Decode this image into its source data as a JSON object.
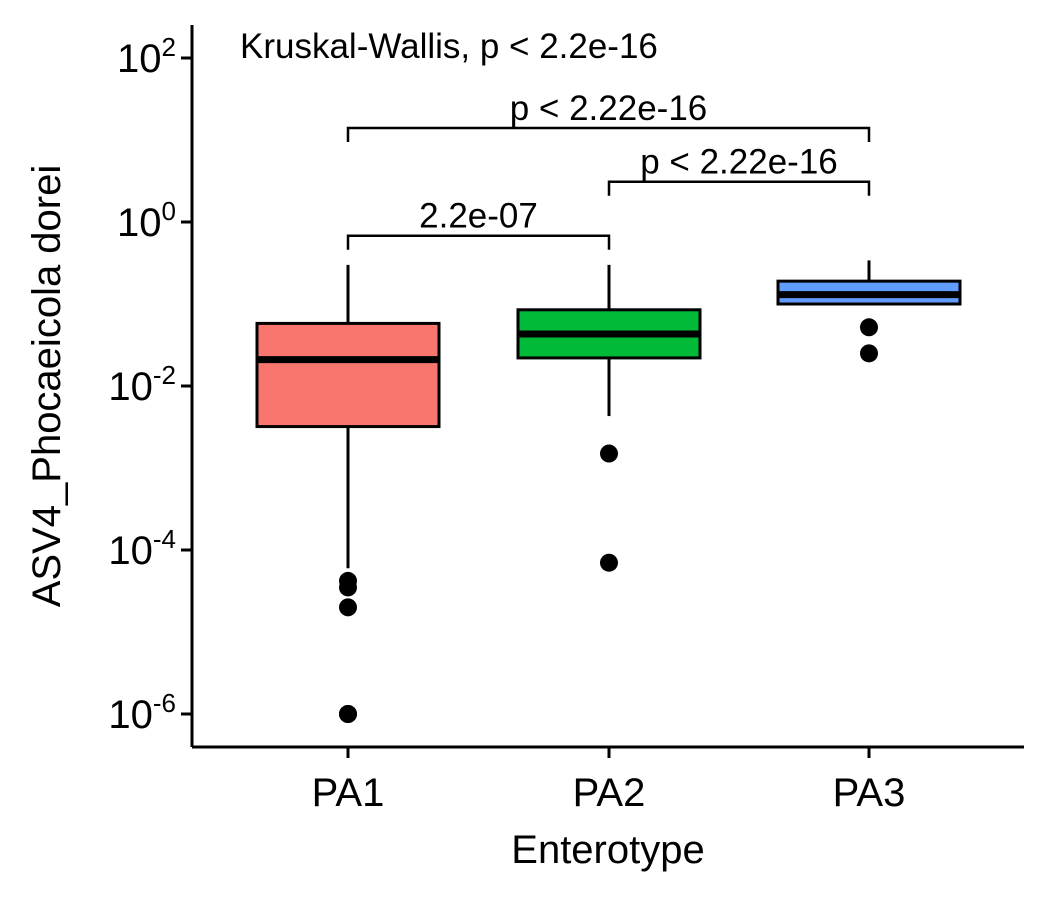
{
  "chart_data": {
    "type": "box",
    "title": "",
    "xlabel": "Enterotype",
    "ylabel": "ASV4_Phocaeicola dorei",
    "y_scale": "log10",
    "ylim": [
      3.5e-07,
      250
    ],
    "y_ticks": [
      {
        "value": 1e-06,
        "base": "10",
        "exp": "-6"
      },
      {
        "value": 0.0001,
        "base": "10",
        "exp": "-4"
      },
      {
        "value": 0.01,
        "base": "10",
        "exp": "-2"
      },
      {
        "value": 1,
        "base": "10",
        "exp": "0"
      },
      {
        "value": 100,
        "base": "10",
        "exp": "2"
      }
    ],
    "categories": [
      "PA1",
      "PA2",
      "PA3"
    ],
    "boxes": [
      {
        "category": "PA1",
        "color": "#F8766D",
        "whisker_low": 6e-05,
        "q1": 0.0032,
        "median": 0.021,
        "q3": 0.058,
        "whisker_high": 0.3,
        "outliers": [
          4.2e-05,
          3.5e-05,
          2e-05,
          1e-06,
          1e-06
        ]
      },
      {
        "category": "PA2",
        "color": "#00BA38",
        "whisker_low": 0.0043,
        "q1": 0.022,
        "median": 0.043,
        "q3": 0.085,
        "whisker_high": 0.3,
        "outliers": [
          0.0015,
          7e-05
        ]
      },
      {
        "category": "PA3",
        "color": "#619CFF",
        "whisker_low": 0.1,
        "q1": 0.1,
        "median": 0.13,
        "q3": 0.19,
        "whisker_high": 0.34,
        "outliers": [
          0.052,
          0.025
        ]
      }
    ],
    "annotation": "Kruskal-Wallis, p < 2.2e-16",
    "comparisons": [
      {
        "from": "PA1",
        "to": "PA2",
        "label": "2.2e-07",
        "y": 0.68
      },
      {
        "from": "PA2",
        "to": "PA3",
        "label": "p < 2.22e-16",
        "y": 3.1
      },
      {
        "from": "PA1",
        "to": "PA3",
        "label": "p < 2.22e-16",
        "y": 14
      }
    ]
  }
}
